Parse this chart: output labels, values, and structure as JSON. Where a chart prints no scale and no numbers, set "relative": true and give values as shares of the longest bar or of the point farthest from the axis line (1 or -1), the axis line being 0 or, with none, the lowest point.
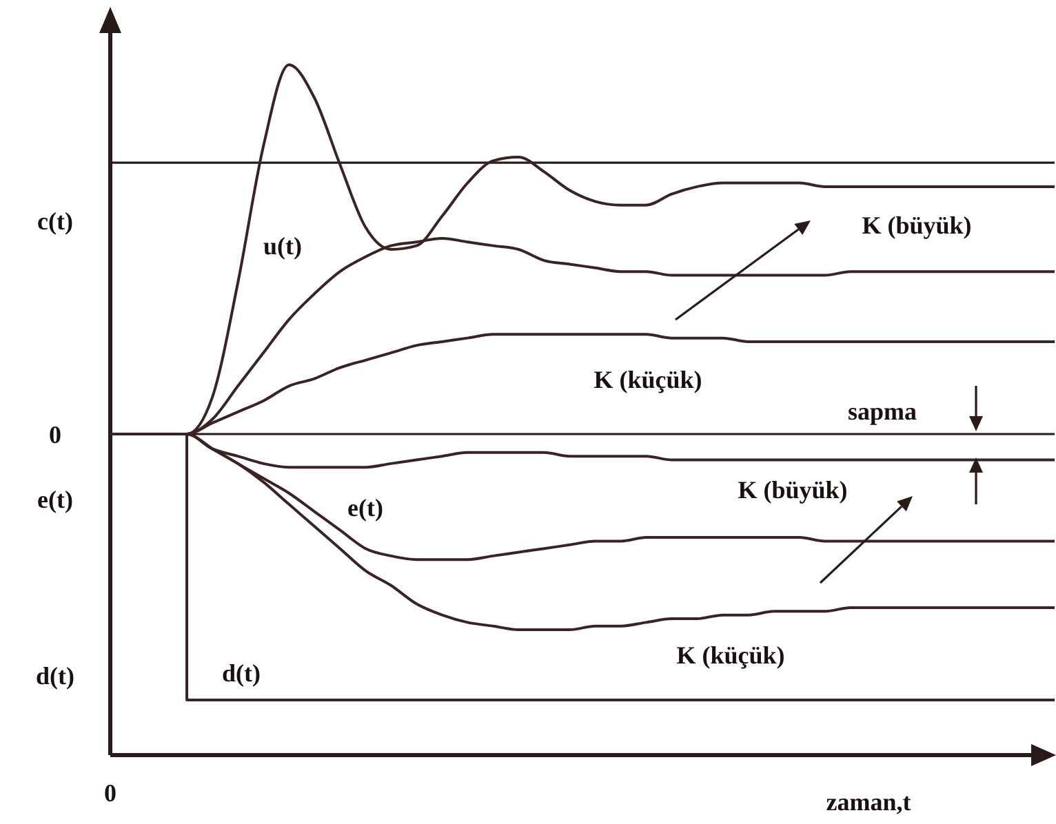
{
  "chart_data": {
    "type": "line",
    "relative": true,
    "xlabel": "zaman,t",
    "marker": "none",
    "line_style": "solid",
    "categories": [
      null,
      null,
      null,
      null,
      null,
      null,
      null,
      null,
      null,
      null,
      null,
      null,
      null,
      null,
      null,
      null,
      null,
      null,
      null,
      null,
      null,
      null,
      null,
      null,
      null,
      null,
      null,
      null,
      null,
      null,
      null,
      null,
      null,
      null,
      null,
      null,
      null,
      null
    ],
    "ref_lines": [
      {
        "axis": "y",
        "value": 0.735,
        "color": "#2b1a1a"
      }
    ],
    "series": [
      {
        "color": "#3b2323",
        "values": [
          0,
          0,
          0,
          0,
          0.1,
          0.41,
          0.78,
          1,
          0.91,
          0.73,
          0.56,
          0.5,
          0.51,
          0.59,
          0.68,
          0.74,
          0.75,
          0.71,
          0.66,
          0.63,
          0.62,
          0.62,
          0.65,
          0.67,
          0.68,
          0.68,
          0.68,
          0.68,
          0.67,
          0.67,
          0.67,
          0.67,
          0.67,
          0.67,
          0.67,
          0.67,
          0.67,
          0.67
        ]
      },
      {
        "color": "#3b2323",
        "values": [
          0,
          0,
          0,
          0,
          0.04,
          0.13,
          0.22,
          0.31,
          0.38,
          0.44,
          0.48,
          0.51,
          0.52,
          0.53,
          0.52,
          0.51,
          0.5,
          0.47,
          0.46,
          0.45,
          0.44,
          0.44,
          0.43,
          0.43,
          0.43,
          0.43,
          0.43,
          0.43,
          0.43,
          0.44,
          0.44,
          0.44,
          0.44,
          0.44,
          0.44,
          0.44,
          0.44,
          0.44
        ]
      },
      {
        "color": "#3b2323",
        "values": [
          0,
          0,
          0,
          0,
          0.03,
          0.06,
          0.09,
          0.13,
          0.15,
          0.18,
          0.2,
          0.22,
          0.24,
          0.25,
          0.26,
          0.27,
          0.27,
          0.27,
          0.27,
          0.27,
          0.27,
          0.27,
          0.26,
          0.26,
          0.26,
          0.25,
          0.25,
          0.25,
          0.25,
          0.25,
          0.25,
          0.25,
          0.25,
          0.25,
          0.25,
          0.25,
          0.25,
          0.25
        ]
      },
      {
        "color": "#3b2323",
        "values": [
          0,
          0,
          0,
          0,
          -0.04,
          -0.06,
          -0.08,
          -0.09,
          -0.09,
          -0.09,
          -0.09,
          -0.08,
          -0.07,
          -0.06,
          -0.05,
          -0.05,
          -0.05,
          -0.05,
          -0.06,
          -0.06,
          -0.06,
          -0.06,
          -0.07,
          -0.07,
          -0.07,
          -0.07,
          -0.07,
          -0.07,
          -0.07,
          -0.07,
          -0.07,
          -0.07,
          -0.07,
          -0.07,
          -0.07,
          -0.07,
          -0.07,
          -0.07
        ]
      },
      {
        "color": "#3b2323",
        "values": [
          0,
          0,
          0,
          0,
          -0.04,
          -0.08,
          -0.12,
          -0.16,
          -0.21,
          -0.26,
          -0.31,
          -0.33,
          -0.34,
          -0.34,
          -0.34,
          -0.33,
          -0.32,
          -0.31,
          -0.3,
          -0.29,
          -0.29,
          -0.28,
          -0.28,
          -0.28,
          -0.28,
          -0.28,
          -0.28,
          -0.28,
          -0.29,
          -0.29,
          -0.29,
          -0.29,
          -0.29,
          -0.29,
          -0.29,
          -0.29,
          -0.29,
          -0.29
        ]
      },
      {
        "color": "#3b2323",
        "values": [
          0,
          0,
          0,
          0,
          -0.04,
          -0.08,
          -0.13,
          -0.19,
          -0.25,
          -0.31,
          -0.37,
          -0.41,
          -0.46,
          -0.49,
          -0.51,
          -0.52,
          -0.53,
          -0.53,
          -0.53,
          -0.52,
          -0.52,
          -0.51,
          -0.5,
          -0.5,
          -0.49,
          -0.49,
          -0.48,
          -0.48,
          -0.48,
          -0.47,
          -0.47,
          -0.47,
          -0.47,
          -0.47,
          -0.47,
          -0.47,
          -0.47,
          -0.47
        ]
      },
      {
        "type": "step",
        "color": "#3b2323",
        "values": [
          0,
          0,
          0,
          -0.72,
          -0.72,
          -0.72,
          -0.72,
          -0.72,
          -0.72,
          -0.72,
          -0.72,
          -0.72,
          -0.72,
          -0.72,
          -0.72,
          -0.72,
          -0.72,
          -0.72,
          -0.72,
          -0.72,
          -0.72,
          -0.72,
          -0.72,
          -0.72,
          -0.72,
          -0.72,
          -0.72,
          -0.72,
          -0.72,
          -0.72,
          -0.72,
          -0.72,
          -0.72,
          -0.72,
          -0.72,
          -0.72,
          -0.72,
          -0.72
        ]
      }
    ],
    "annotations": [
      "c(t)",
      "0",
      "e(t)",
      "d(t)",
      "u(t)",
      "K (büyük)",
      "K (küçük)",
      "sapma",
      "K (büyük)",
      "e(t)",
      "K (küçük)",
      "d(t)",
      "0"
    ]
  }
}
